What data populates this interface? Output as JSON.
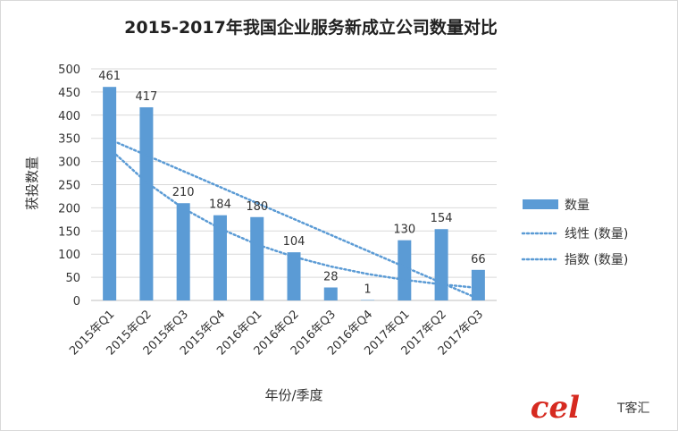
{
  "chart_data": {
    "type": "bar",
    "title": "2015-2017年我国企业服务新成立公司数量对比",
    "xlabel": "年份/季度",
    "ylabel": "获投数量",
    "categories": [
      "2015年Q1",
      "2015年Q2",
      "2015年Q3",
      "2015年Q4",
      "2016年Q1",
      "2016年Q2",
      "2016年Q3",
      "2016年Q4",
      "2017年Q1",
      "2017年Q2",
      "2017年Q3"
    ],
    "series": [
      {
        "name": "数量",
        "values": [
          461,
          417,
          210,
          184,
          180,
          104,
          28,
          1,
          130,
          154,
          66
        ],
        "color": "#5b9bd5"
      }
    ],
    "trendlines": [
      {
        "name": "线性 (数量)",
        "kind": "linear",
        "style": "dotted",
        "color": "#5b9bd5"
      },
      {
        "name": "指数 (数量)",
        "kind": "exponential",
        "style": "dotted",
        "color": "#5b9bd5"
      }
    ],
    "ylim": [
      0,
      500
    ],
    "ytick_step": 50,
    "yticks": [
      "0",
      "50",
      "100",
      "150",
      "200",
      "250",
      "300",
      "350",
      "400",
      "450",
      "500"
    ],
    "data_labels": true,
    "grid": true,
    "legend_position": "right"
  },
  "watermark": {
    "text": "T客汇",
    "logo_text": "cel",
    "color": "#d62a20"
  }
}
